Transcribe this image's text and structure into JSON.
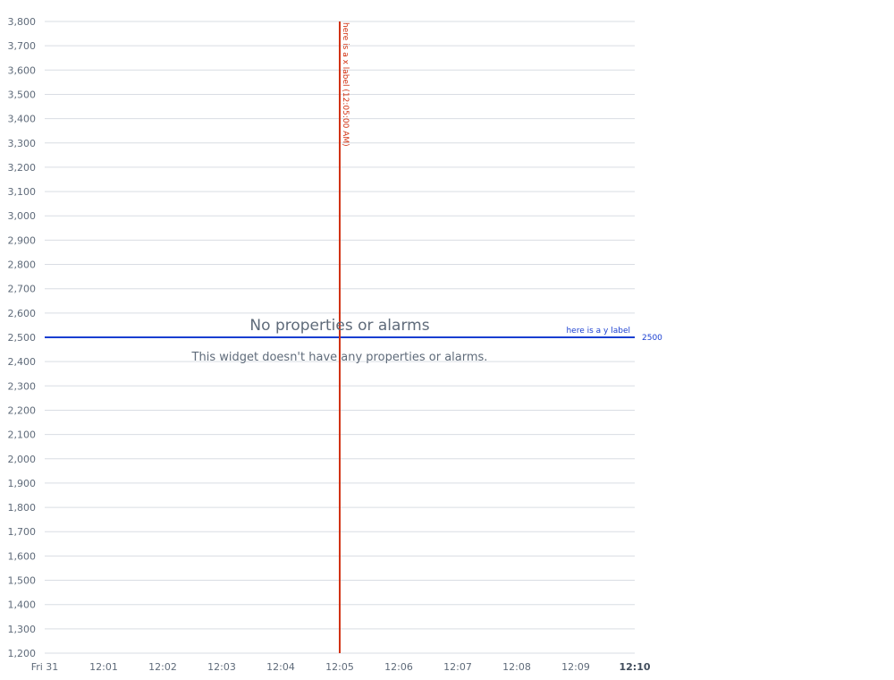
{
  "chart_data": {
    "type": "line",
    "y_ticks": [
      1200,
      1300,
      1400,
      1500,
      1600,
      1700,
      1800,
      1900,
      2000,
      2100,
      2200,
      2300,
      2400,
      2500,
      2600,
      2700,
      2800,
      2900,
      3000,
      3100,
      3200,
      3300,
      3400,
      3500,
      3600,
      3700,
      3800
    ],
    "y_tick_labels": [
      "1,200",
      "1,300",
      "1,400",
      "1,500",
      "1,600",
      "1,700",
      "1,800",
      "1,900",
      "2,000",
      "2,100",
      "2,200",
      "2,300",
      "2,400",
      "2,500",
      "2,600",
      "2,700",
      "2,800",
      "2,900",
      "3,000",
      "3,100",
      "3,200",
      "3,300",
      "3,400",
      "3,500",
      "3,600",
      "3,700",
      "3,800"
    ],
    "ylim": [
      1200,
      3800
    ],
    "x_tick_labels": [
      "Fri 31",
      "12:01",
      "12:02",
      "12:03",
      "12:04",
      "12:05",
      "12:06",
      "12:07",
      "12:08",
      "12:09",
      "12:10"
    ],
    "x_tick_bold": [
      false,
      false,
      false,
      false,
      false,
      false,
      false,
      false,
      false,
      false,
      true
    ],
    "xlim_minutes": [
      0,
      10
    ],
    "grid": true,
    "series": [],
    "thresholds": {
      "y": {
        "value": 2500,
        "value_label": "2500",
        "label": "here is a y label",
        "color": "#1a3fd1"
      },
      "x": {
        "minute": 5,
        "label": "here is a x label (12:05:00 AM)",
        "color": "#d13212"
      }
    },
    "empty_state": {
      "title": "No properties or alarms",
      "message": "This widget doesn't have any properties or alarms."
    }
  }
}
